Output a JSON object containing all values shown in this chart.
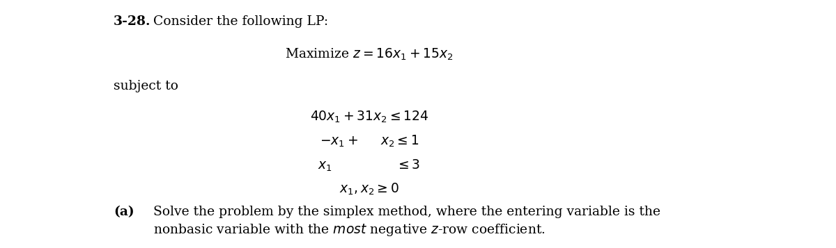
{
  "background_color": "#ffffff",
  "fig_width": 12.0,
  "fig_height": 3.57,
  "dpi": 100,
  "text_color": "#000000",
  "font_size": 13.5,
  "problem_number": "3-28.",
  "intro_text": "  Consider the following LP:",
  "maximize_line": "Maximize $z = 16x_1 + 15x_2$",
  "subject_to": "subject to",
  "constraint1": "$40x_1 + 31x_2 \\leq 124$",
  "constraint2_left": "$-x_1 +$",
  "constraint2_mid": "$x_2 \\leq 1$",
  "constraint3_left": "$x_1$",
  "constraint3_right": "$\\leq 3$",
  "constraint4": "$x_1, x_2 \\geq 0$",
  "part_a_label": "(a)",
  "part_a_line1": "Solve the problem by the simplex method, where the entering variable is the",
  "part_a_line2_pre": "nonbasic variable with the ",
  "part_a_line2_italic": "most",
  "part_a_line2_mid": " negative ",
  "part_a_line2_italic2": "z",
  "part_a_line2_post": "-row coefficient."
}
